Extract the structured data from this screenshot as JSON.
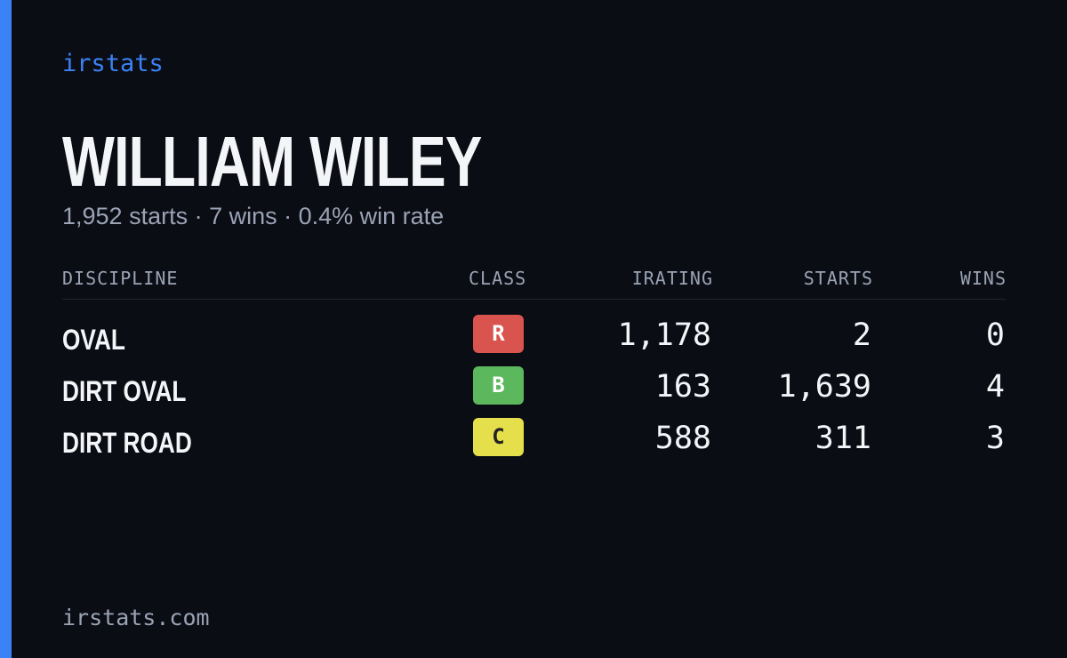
{
  "header": {
    "brand": "irstats",
    "title": "WILLIAM WILEY",
    "subtitle": "1,952 starts · 7 wins · 0.4% win rate"
  },
  "table": {
    "columns": [
      "DISCIPLINE",
      "CLASS",
      "IRATING",
      "STARTS",
      "WINS"
    ],
    "rows": [
      [
        "OVAL",
        "R",
        "1,178",
        "2",
        "0"
      ],
      [
        "DIRT OVAL",
        "B",
        "163",
        "1,639",
        "4"
      ],
      [
        "DIRT ROAD",
        "C",
        "588",
        "311",
        "3"
      ]
    ]
  },
  "footer": {
    "url": "irstats.com"
  }
}
